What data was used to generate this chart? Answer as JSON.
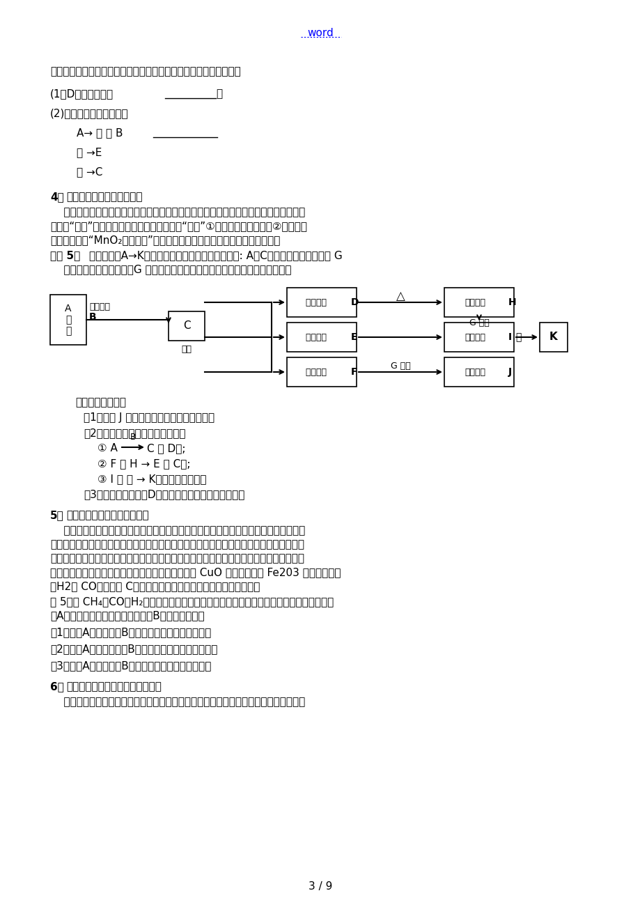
{
  "title_word": "word",
  "bg_color": "#ffffff",
  "text_color": "#000000",
  "page_num": "3 / 9",
  "intro_line": "水变浑浓。其余反应条件、局部反应物和生成物均已略去。试推断：",
  "s4_body1": "    由于初中化学中所涉与的化学反应不多，有些化学反应条件在题中带有明显的指向性，",
  "s4_body2": "例如：“通电”条件就是指水在通电条件下分解“高温”①指碳酸钉高温分解，②指铁矿石",
  "s4_body3": "炼铁的反应；“MnO₂作専化剂”就是指双氧水在二氧化锄嫂化下分解的反应。",
  "ex5_t1": "如下图中的A→K分别代表初中化学中的常见物质。: A、C两物质组成元素一样； G",
  "ex5_t2": "    溶液为某物质的稀溶液，G 的浓溶液能使小木棍变黑。图中局部生成物未标出。",
  "s5_body1": "    这里所指的性质应具有鲜明的个性，例如：浓硫酸的吸水性、脱水性、溶于水放热；固",
  "s5_body2": "体氧氧化钙溢于水温度升高额以与它能吸水潮解；生石灰与水反响放热；瞄酸锨溢于水温度",
  "s5_body3": "下降；氢气是最轻的气体；水常温下为液体；氧气能使带火星的木条复燃；无水硫酸铜遇水",
  "s5_body4": "变蓝；二氧化碳通入澄清的石灰水变浑浓；能使黑色 CuO 变红（或红色 Fe203 变黑）的气体",
  "s5_body5": "是H2或 CO，固体是 C；酸碱指示剂与酸性或碱性溶液的反映等等。",
  "ex5_line1": "例 5：有 CH₄、CO、H₂三种纯净的气体，分别燃烧后，将生成的气体先通过无水硫酸铜固体",
  "ex5_line2": "（A装置），再通过澄清的石灰水（B装置），如此：",
  "ex5_q1": "（1）如果A装置变蓝，B装置无现象，如此原气体是。",
  "ex5_q2": "（2）如果A装置不变蓝，B装置变浑浓，如此原气体是。",
  "ex5_q3": "（3）如果A装置变蓝，B装置变浑浓，如此原气体是。",
  "s6_body": "    特殊的反响现象常作推断题的突破口，例如：氨气能使湿润的红色石蕊试纸变蓝；硫在"
}
